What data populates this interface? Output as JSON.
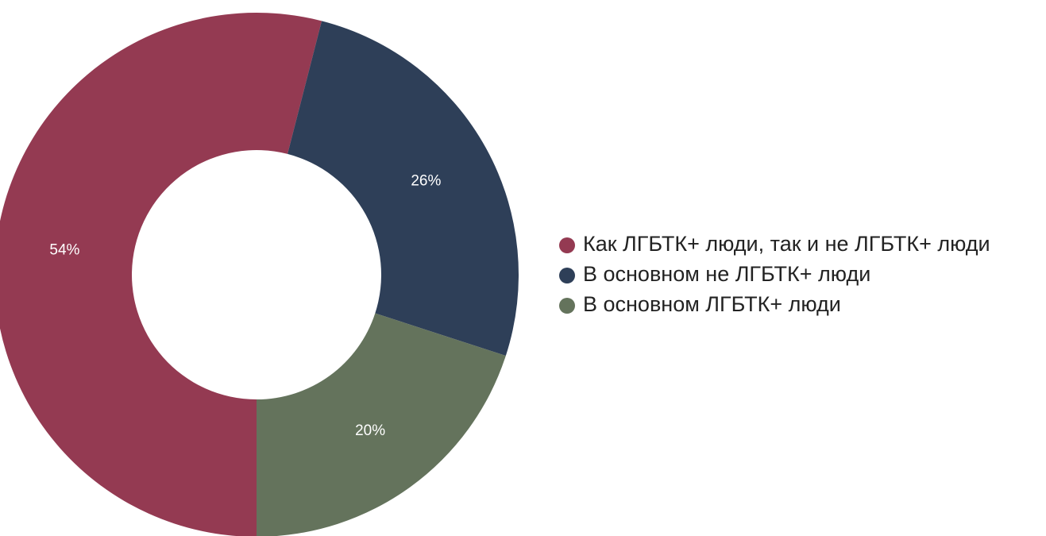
{
  "chart_data": {
    "type": "donut",
    "categories": [
      "Как ЛГБТК+ люди, так и не ЛГБТК+ люди",
      "В основном не ЛГБТК+ люди",
      "В основном ЛГБТК+ люди"
    ],
    "values": [
      54,
      26,
      20
    ],
    "value_labels": [
      "54%",
      "26%",
      "20%"
    ],
    "colors": [
      "#943a52",
      "#2e3f58",
      "#64735c"
    ],
    "legend": "right"
  }
}
